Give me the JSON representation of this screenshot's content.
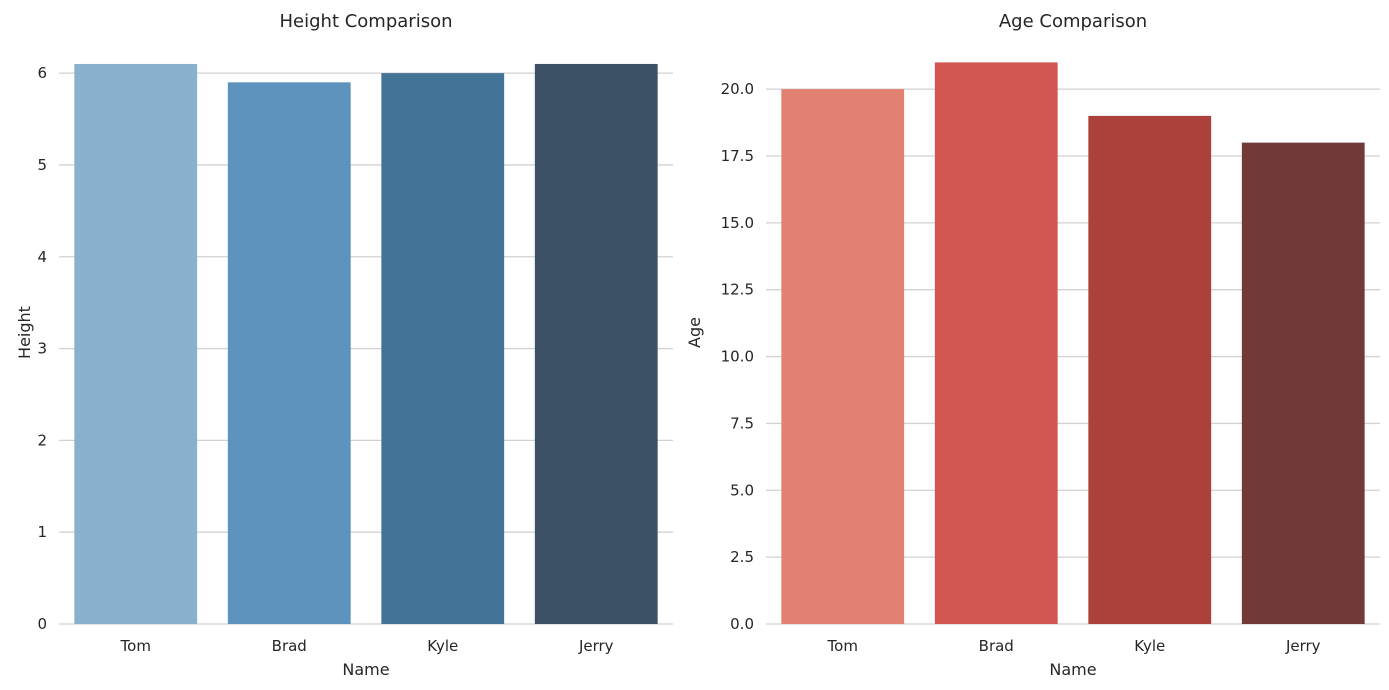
{
  "figure": {
    "background": "#ffffff",
    "grid_color": "#d2d2d2",
    "text_color": "#262626"
  },
  "chart_data": [
    {
      "type": "bar",
      "title": "Height Comparison",
      "xlabel": "Name",
      "ylabel": "Height",
      "categories": [
        "Tom",
        "Brad",
        "Kyle",
        "Jerry"
      ],
      "values": [
        6.1,
        5.9,
        6.0,
        6.1
      ],
      "bar_colors": [
        "#89b0cc",
        "#5d93bd",
        "#437396",
        "#3c5166"
      ],
      "yticks": [
        0,
        1,
        2,
        3,
        4,
        5,
        6
      ],
      "ytick_labels": [
        "0",
        "1",
        "2",
        "3",
        "4",
        "5",
        "6"
      ],
      "ylim": [
        0,
        6.35
      ],
      "grid": true,
      "legend_position": "none"
    },
    {
      "type": "bar",
      "title": "Age Comparison",
      "xlabel": "Name",
      "ylabel": "Age",
      "categories": [
        "Tom",
        "Brad",
        "Kyle",
        "Jerry"
      ],
      "values": [
        20,
        21,
        19,
        18
      ],
      "bar_colors": [
        "#e08172",
        "#d25750",
        "#ac413c",
        "#703a38"
      ],
      "yticks": [
        0,
        2.5,
        5,
        7.5,
        10,
        12.5,
        15,
        17.5,
        20
      ],
      "ytick_labels": [
        "0.0",
        "2.5",
        "5.0",
        "7.5",
        "10.0",
        "12.5",
        "15.0",
        "17.5",
        "20.0"
      ],
      "ylim": [
        0,
        21.8
      ],
      "grid": true,
      "legend_position": "none"
    }
  ]
}
